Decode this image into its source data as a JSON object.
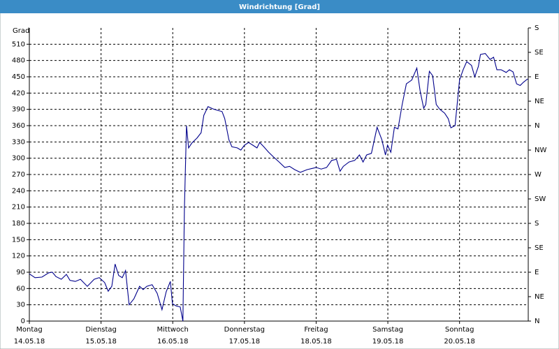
{
  "chart_data": {
    "type": "line",
    "title": "Windrichtung [Grad]",
    "ylabel": "Grad",
    "xlim": [
      0,
      167
    ],
    "xticks": [
      {
        "value": 0,
        "label": "Montag"
      },
      {
        "value": 24,
        "label": "Dienstag"
      },
      {
        "value": 48,
        "label": "Mittwoch"
      },
      {
        "value": 72,
        "label": "Donnerstag"
      },
      {
        "value": 96,
        "label": "Freitag"
      },
      {
        "value": 120,
        "label": "Samstag"
      },
      {
        "value": 144,
        "label": "Sonntag"
      }
    ],
    "xtick_dates": [
      "14.05.18",
      "15.05.18",
      "16.05.18",
      "17.05.18",
      "18.05.18",
      "19.05.18",
      "20.05.18"
    ],
    "ylim": [
      0,
      540
    ],
    "yticks": [
      0,
      30,
      60,
      90,
      120,
      150,
      180,
      210,
      240,
      270,
      300,
      330,
      360,
      390,
      420,
      450,
      480,
      510
    ],
    "y2lim": [
      0,
      540
    ],
    "y2ticks": [
      {
        "value": 0,
        "label": "N"
      },
      {
        "value": 45,
        "label": "NE"
      },
      {
        "value": 90,
        "label": "E"
      },
      {
        "value": 135,
        "label": "SE"
      },
      {
        "value": 180,
        "label": "S"
      },
      {
        "value": 225,
        "label": "SW"
      },
      {
        "value": 270,
        "label": "W"
      },
      {
        "value": 315,
        "label": "NW"
      },
      {
        "value": 360,
        "label": "N"
      },
      {
        "value": 405,
        "label": "NE"
      },
      {
        "value": 450,
        "label": "E"
      },
      {
        "value": 495,
        "label": "SE"
      },
      {
        "value": 540,
        "label": "S"
      }
    ],
    "grid": true,
    "series": [
      {
        "color": "#00008b",
        "x": [
          0,
          1.9,
          4.2,
          6.5,
          7.7,
          8.9,
          10.7,
          12.4,
          13.6,
          15.4,
          17.1,
          19.4,
          21.7,
          23.4,
          25.2,
          26.4,
          27.6,
          28.7,
          29.9,
          31.1,
          32.2,
          33.4,
          35,
          36.9,
          38.1,
          39.3,
          41.1,
          42.8,
          44.4,
          45.8,
          47.2,
          47.9,
          49.1,
          50.5,
          51.4,
          51.9,
          52.6,
          53.3,
          54.4,
          56.1,
          57.5,
          58.4,
          59.8,
          61.4,
          63.1,
          64.5,
          65.4,
          66.8,
          67.8,
          69.6,
          70.8,
          72,
          73.4,
          74.8,
          76.2,
          77.1,
          78.5,
          80.1,
          81.8,
          83.6,
          85.5,
          87.1,
          88.8,
          90.7,
          93,
          95.3,
          96,
          97.7,
          99.5,
          101.2,
          102.8,
          104,
          105.1,
          107,
          108.9,
          110.5,
          111.7,
          112.9,
          114.5,
          116.4,
          118,
          119.2,
          119.9,
          121,
          122.2,
          123.4,
          124.8,
          126.2,
          128,
          129.7,
          130.8,
          132,
          132.7,
          133.9,
          135,
          136.2,
          137.4,
          139,
          140.2,
          141.1,
          142.5,
          143.2,
          144,
          145.2,
          146.4,
          148,
          149.1,
          150.3,
          151,
          152.6,
          154.2,
          155.4,
          156.5,
          157.9,
          159.6,
          160.7,
          161.9,
          163.1,
          164.3,
          165.4,
          166.8
        ],
        "values": [
          87,
          80,
          81,
          89,
          90,
          82,
          77,
          86,
          75,
          73,
          77,
          64,
          77,
          80,
          71,
          55,
          64,
          105,
          84,
          80,
          93,
          30,
          41,
          64,
          58,
          64,
          67,
          51,
          21,
          54,
          73,
          32,
          28,
          26,
          0,
          206,
          360,
          319,
          328,
          337,
          347,
          379,
          395,
          391,
          388,
          386,
          373,
          334,
          321,
          319,
          315,
          324,
          329,
          324,
          319,
          329,
          321,
          311,
          302,
          293,
          283,
          285,
          279,
          274,
          279,
          282,
          283,
          280,
          283,
          296,
          298,
          276,
          285,
          293,
          296,
          306,
          293,
          306,
          309,
          357,
          334,
          306,
          324,
          311,
          357,
          354,
          399,
          437,
          444,
          466,
          424,
          392,
          399,
          460,
          452,
          399,
          390,
          383,
          373,
          356,
          360,
          399,
          444,
          463,
          478,
          471,
          450,
          469,
          491,
          493,
          482,
          486,
          463,
          463,
          458,
          463,
          459,
          437,
          434,
          440,
          446
        ]
      }
    ]
  }
}
